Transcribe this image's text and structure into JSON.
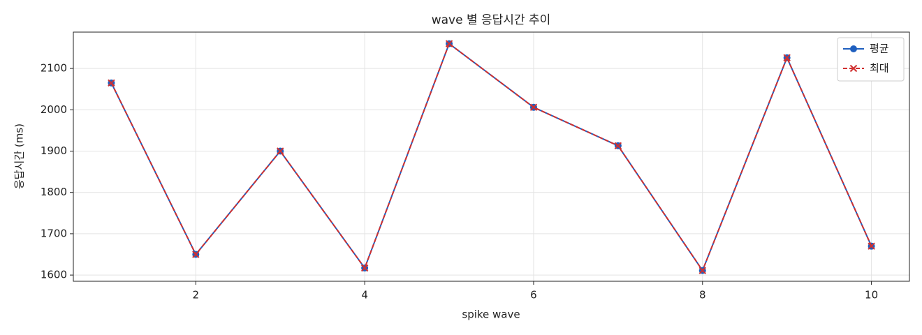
{
  "chart_data": {
    "type": "line",
    "title": "wave 별 응답시간 추이",
    "x_label": "spike wave",
    "y_label": "응답시간 (ms)",
    "x": [
      1,
      2,
      3,
      4,
      5,
      6,
      7,
      8,
      9,
      10
    ],
    "series": [
      {
        "name": "평균",
        "color": "#1f5fbf",
        "marker": "o",
        "dash": false,
        "values": [
          2065,
          1650,
          1900,
          1617,
          2160,
          2006,
          1913,
          1611,
          2126,
          1670
        ]
      },
      {
        "name": "최대",
        "color": "#d03030",
        "marker": "x",
        "dash": true,
        "values": [
          2065,
          1650,
          1900,
          1617,
          2160,
          2006,
          1913,
          1611,
          2126,
          1670
        ]
      }
    ],
    "xlim": [
      0.55,
      10.45
    ],
    "xticks": [
      2,
      4,
      6,
      8,
      10
    ],
    "ylim": [
      1585,
      2188
    ],
    "yticks": [
      1600,
      1700,
      1800,
      1900,
      2000,
      2100
    ],
    "grid": true,
    "legend": "upper right"
  }
}
